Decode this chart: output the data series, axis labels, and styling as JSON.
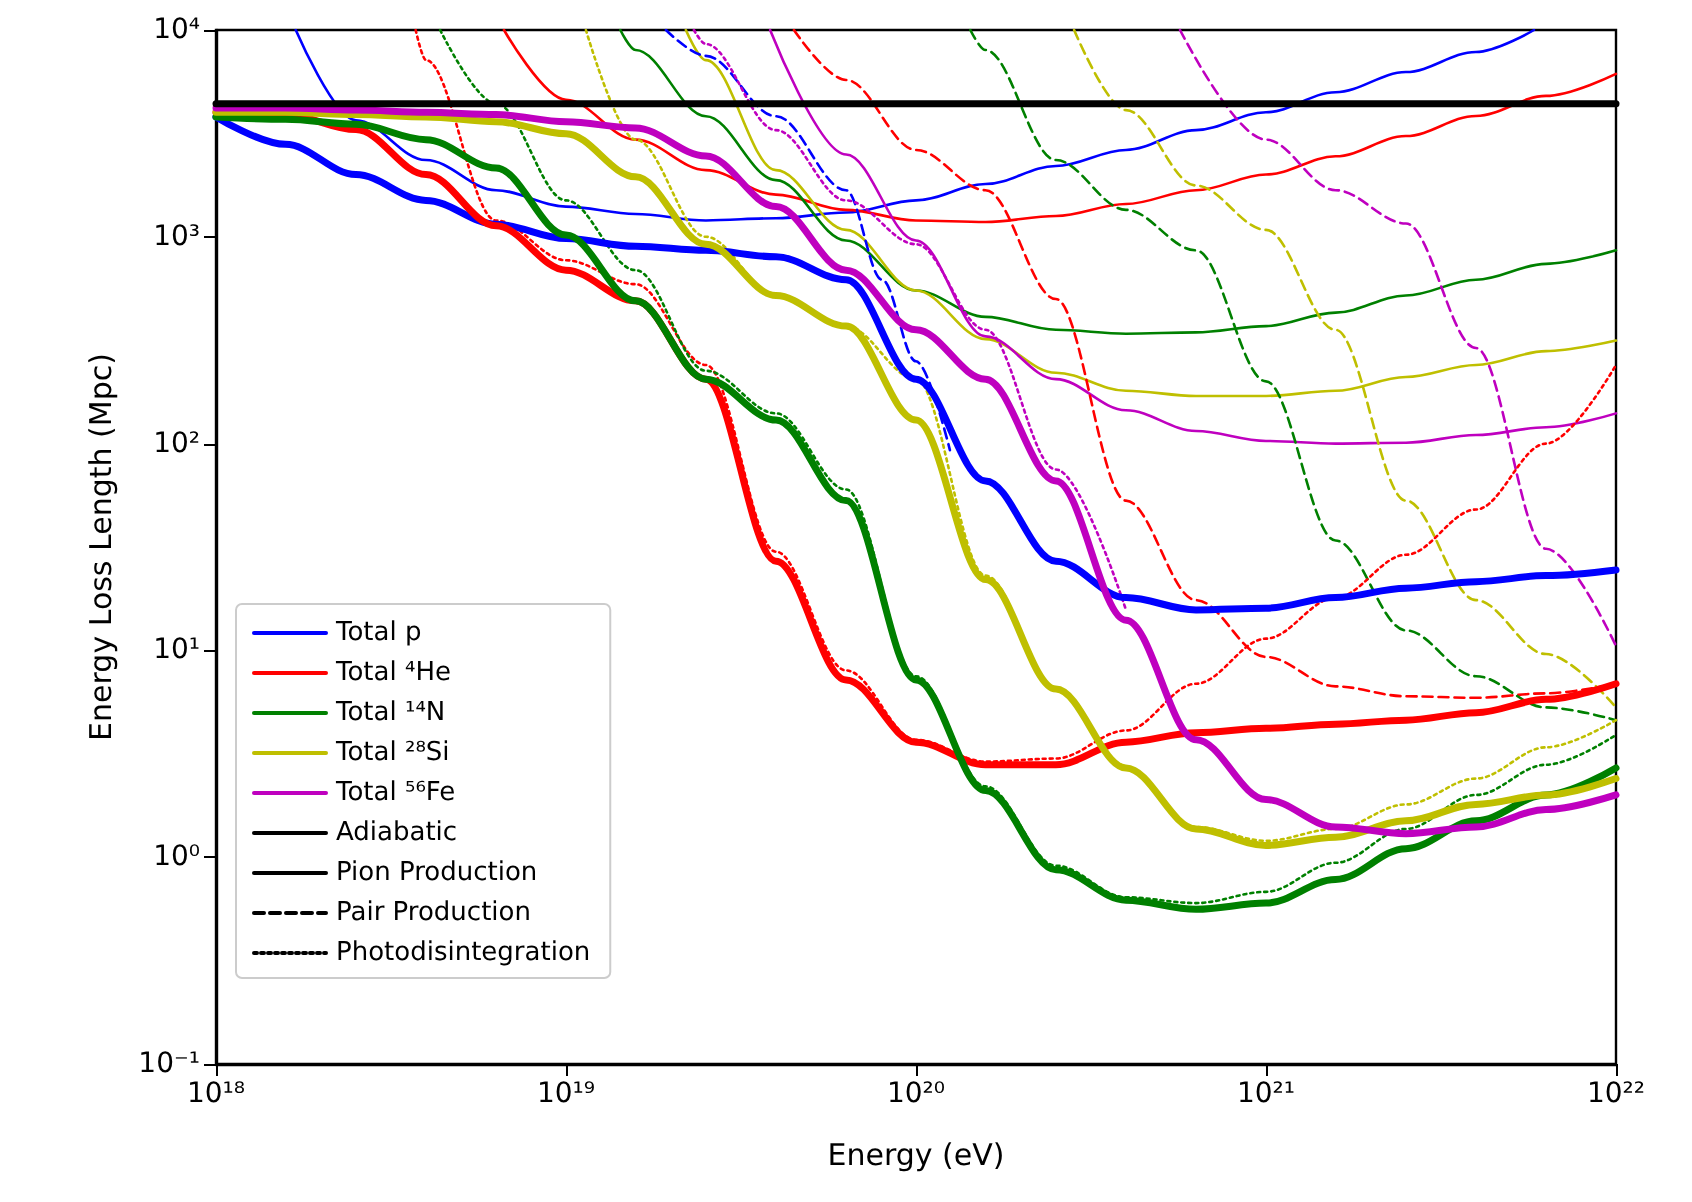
{
  "chart_data": {
    "type": "line",
    "xlabel": "Energy (eV)",
    "ylabel": "Energy Loss Length (Mpc)",
    "log": "xy",
    "grid": false,
    "legend": "bottom left",
    "marker": "none",
    "xlim": [
      1e+18,
      1e+22
    ],
    "xticks": [
      {
        "value": 1e+18,
        "label": "10¹⁸"
      },
      {
        "value": 1e+19,
        "label": "10¹⁹"
      },
      {
        "value": 1e+20,
        "label": "10²⁰"
      },
      {
        "value": 1e+21,
        "label": "10²¹"
      },
      {
        "value": 1e+22,
        "label": "10²²"
      }
    ],
    "ylim": [
      0.1,
      10000
    ],
    "yticks": [
      {
        "value": 0.1,
        "label": "10⁻¹"
      },
      {
        "value": 1,
        "label": "10⁰"
      },
      {
        "value": 10,
        "label": "10¹"
      },
      {
        "value": 100,
        "label": "10²"
      },
      {
        "value": 1000,
        "label": "10³"
      },
      {
        "value": 10000,
        "label": "10⁴"
      }
    ],
    "series": [
      {
        "name": "Total p",
        "color": "#0000ff",
        "line_style": "solid",
        "x": [
          1e+18,
          1.58e+18,
          2.51e+18,
          3.98e+18,
          6.31e+18,
          1e+19,
          1.58e+19,
          2.51e+19,
          3.98e+19,
          6.31e+19,
          1e+20,
          1.58e+20,
          2.51e+20,
          3.98e+20,
          6.31e+20,
          1e+21,
          1.58e+21,
          2.51e+21,
          3.98e+21,
          6.31e+21,
          1e+22
        ],
        "values": [
          3800,
          2800,
          2000,
          1500,
          1150,
          980,
          900,
          860,
          800,
          620,
          205,
          66,
          27,
          18,
          15.7,
          16,
          18,
          20,
          21.5,
          23,
          24.5
        ]
      },
      {
        "name": "Total ⁴He",
        "color": "#ff0000",
        "line_style": "solid",
        "x": [
          1e+18,
          1.58e+18,
          2.51e+18,
          3.98e+18,
          6.31e+18,
          1e+19,
          1.58e+19,
          2.51e+19,
          3.98e+19,
          6.31e+19,
          1e+20,
          1.58e+20,
          2.51e+20,
          3.98e+20,
          6.31e+20,
          1e+21,
          1.58e+21,
          2.51e+21,
          3.98e+21,
          6.31e+21,
          1e+22
        ],
        "values": [
          4000,
          3900,
          3300,
          2000,
          1130,
          690,
          490,
          205,
          27,
          7.2,
          3.6,
          2.8,
          2.8,
          3.6,
          4,
          4.2,
          4.4,
          4.6,
          5,
          5.8,
          6.9
        ]
      },
      {
        "name": "Total ¹⁴N",
        "color": "#008000",
        "line_style": "solid",
        "x": [
          1e+18,
          1.58e+18,
          2.51e+18,
          3.98e+18,
          6.31e+18,
          1e+19,
          1.58e+19,
          2.51e+19,
          3.98e+19,
          6.31e+19,
          1e+20,
          1.58e+20,
          2.51e+20,
          3.98e+20,
          6.31e+20,
          1e+21,
          1.58e+21,
          2.51e+21,
          3.98e+21,
          6.31e+21,
          1e+22
        ],
        "values": [
          3800,
          3700,
          3500,
          2950,
          2150,
          1020,
          490,
          205,
          130,
          53,
          7.2,
          2.1,
          0.87,
          0.62,
          0.56,
          0.6,
          0.78,
          1.1,
          1.5,
          2.0,
          2.7
        ]
      },
      {
        "name": "Total ²⁸Si",
        "color": "#bfbf00",
        "line_style": "solid",
        "x": [
          1e+18,
          1.58e+18,
          2.51e+18,
          3.98e+18,
          6.31e+18,
          1e+19,
          1.58e+19,
          2.51e+19,
          3.98e+19,
          6.31e+19,
          1e+20,
          1.58e+20,
          2.51e+20,
          3.98e+20,
          6.31e+20,
          1e+21,
          1.58e+21,
          2.51e+21,
          3.98e+21,
          6.31e+21,
          1e+22
        ],
        "values": [
          4000,
          4000,
          3900,
          3800,
          3600,
          3150,
          1950,
          920,
          520,
          370,
          130,
          22,
          6.5,
          2.7,
          1.37,
          1.14,
          1.25,
          1.5,
          1.8,
          2.0,
          2.4
        ]
      },
      {
        "name": "Total ⁵⁶Fe",
        "color": "#bf00bf",
        "line_style": "solid",
        "x": [
          1e+18,
          1.58e+18,
          2.51e+18,
          3.98e+18,
          6.31e+18,
          1e+19,
          1.58e+19,
          2.51e+19,
          3.98e+19,
          6.31e+19,
          1e+20,
          1.58e+20,
          2.51e+20,
          3.98e+20,
          6.31e+20,
          1e+21,
          1.58e+21,
          2.51e+21,
          3.98e+21,
          6.31e+21,
          1e+22
        ],
        "values": [
          4200,
          4200,
          4100,
          4000,
          3900,
          3600,
          3360,
          2460,
          1400,
          690,
          355,
          205,
          66,
          14,
          3.7,
          1.9,
          1.4,
          1.3,
          1.4,
          1.7,
          2.0
        ]
      },
      {
        "name": "Adiabatic",
        "color": "#000000",
        "line_style": "solid",
        "x": [
          1e+18,
          1e+22
        ],
        "values": [
          4400,
          4400
        ]
      },
      {
        "name": "Pion Production",
        "color": "#000000",
        "line_style": "solid"
      },
      {
        "name": "Pair Production",
        "color": "#000000",
        "line_style": "dashed"
      },
      {
        "name": "Photodisintegration",
        "color": "#000000",
        "line_style": "dotted"
      },
      {
        "color": "#0000ff",
        "line_style": "solid",
        "x": [
          1.69e+18,
          2.51e+18,
          3.98e+18,
          6.31e+18,
          1e+19,
          1.58e+19,
          2.51e+19,
          3.98e+19,
          6.31e+19,
          1e+20,
          1.58e+20,
          2.51e+20,
          3.98e+20,
          6.31e+20,
          1e+21,
          1.58e+21,
          2.51e+21,
          3.98e+21,
          5.83e+21
        ],
        "values": [
          10000,
          3660,
          2350,
          1680,
          1400,
          1290,
          1200,
          1230,
          1310,
          1500,
          1800,
          2200,
          2630,
          3280,
          4000,
          5000,
          6260,
          7830,
          10000
        ]
      },
      {
        "color": "#ff0000",
        "line_style": "solid",
        "x": [
          6.65e+18,
          1e+19,
          1.58e+19,
          2.51e+19,
          3.98e+19,
          6.31e+19,
          1e+20,
          1.58e+20,
          2.51e+20,
          3.98e+20,
          6.31e+20,
          1e+21,
          1.58e+21,
          2.51e+21,
          3.98e+21,
          6.31e+21,
          1e+22
        ],
        "values": [
          10000,
          4600,
          2950,
          2100,
          1600,
          1350,
          1200,
          1180,
          1260,
          1440,
          1680,
          2000,
          2450,
          3070,
          3840,
          4800,
          6130
        ]
      },
      {
        "color": "#008000",
        "line_style": "solid",
        "x": [
          1.43e+19,
          1.58e+19,
          2.51e+19,
          3.98e+19,
          6.31e+19,
          1e+20,
          1.58e+20,
          2.51e+20,
          3.98e+20,
          6.31e+20,
          1e+21,
          1.58e+21,
          2.51e+21,
          3.98e+21,
          6.31e+21,
          1e+22
        ],
        "values": [
          10000,
          8000,
          3830,
          1880,
          960,
          550,
          410,
          355,
          340,
          345,
          370,
          430,
          520,
          620,
          740,
          860
        ]
      },
      {
        "color": "#bfbf00",
        "line_style": "solid",
        "x": [
          2.2e+19,
          2.51e+19,
          3.98e+19,
          6.31e+19,
          1e+20,
          1.58e+20,
          2.51e+20,
          3.98e+20,
          6.31e+20,
          1e+21,
          1.58e+21,
          2.51e+21,
          3.98e+21,
          6.31e+21,
          1e+22
        ],
        "values": [
          10000,
          7150,
          2100,
          1080,
          550,
          320,
          220,
          180,
          170,
          170,
          180,
          210,
          240,
          280,
          315
        ]
      },
      {
        "color": "#bf00bf",
        "line_style": "solid",
        "x": [
          3.83e+19,
          6.31e+19,
          1e+20,
          1.58e+20,
          2.51e+20,
          3.98e+20,
          6.31e+20,
          1e+21,
          1.58e+21,
          2.51e+21,
          3.98e+21,
          6.31e+21,
          1e+22
        ],
        "values": [
          10000,
          2500,
          960,
          330,
          205,
          145,
          115,
          103,
          100,
          101,
          110,
          120,
          140
        ]
      },
      {
        "color": "#0000ff",
        "line_style": "dashed",
        "x": [
          1.93e+19,
          2.51e+19,
          3.98e+19,
          6.31e+19,
          8e+19,
          1e+20,
          1.25e+20
        ],
        "values": [
          10000,
          7500,
          3830,
          1680,
          620,
          250,
          93
        ]
      },
      {
        "color": "#ff0000",
        "line_style": "dashed",
        "x": [
          4.48e+19,
          6.31e+19,
          1e+20,
          1.58e+20,
          2.51e+20,
          3.98e+20,
          6.31e+20,
          1e+21,
          1.58e+21,
          2.51e+21,
          3.98e+21,
          6.31e+21,
          1e+22
        ],
        "values": [
          10000,
          5730,
          2630,
          1680,
          500,
          53,
          17.5,
          9.3,
          6.7,
          6.0,
          5.9,
          6.2,
          6.9
        ]
      },
      {
        "color": "#008000",
        "line_style": "dashed",
        "x": [
          1.43e+20,
          1.58e+20,
          2.51e+20,
          3.98e+20,
          6.31e+20,
          1e+21,
          1.58e+21,
          2.51e+21,
          3.98e+21,
          6.31e+21,
          1e+22
        ],
        "values": [
          10000,
          8000,
          2350,
          1350,
          860,
          200,
          34,
          12.5,
          7.5,
          5.3,
          4.6
        ]
      },
      {
        "color": "#bfbf00",
        "line_style": "dashed",
        "x": [
          2.83e+20,
          3.98e+20,
          6.31e+20,
          1e+21,
          1.58e+21,
          2.51e+21,
          3.98e+21,
          6.31e+21,
          1e+22
        ],
        "values": [
          10000,
          4100,
          1770,
          1080,
          355,
          53,
          17.5,
          9.6,
          5.3
        ]
      },
      {
        "color": "#bf00bf",
        "line_style": "dashed",
        "x": [
          5.68e+20,
          1e+21,
          1.58e+21,
          2.51e+21,
          3.98e+21,
          6.31e+21,
          1e+22
        ],
        "values": [
          10000,
          2950,
          1680,
          1160,
          290,
          31,
          10.5
        ]
      },
      {
        "color": "#ff0000",
        "line_style": "dotted",
        "x": [
          3.72e+18,
          3.98e+18,
          6.31e+18,
          1e+19,
          1.58e+19,
          2.51e+19,
          3.98e+19,
          6.31e+19,
          1e+20,
          1.58e+20,
          2.51e+20,
          3.98e+20,
          6.31e+20,
          1e+21,
          1.58e+21,
          2.51e+21,
          3.98e+21,
          6.31e+21,
          1e+22
        ],
        "values": [
          10000,
          7150,
          1200,
          770,
          590,
          240,
          30,
          8.0,
          3.7,
          2.9,
          3.0,
          4.1,
          6.9,
          11.4,
          18,
          29,
          48,
          100,
          240
        ]
      },
      {
        "color": "#008000",
        "line_style": "dotted",
        "x": [
          4.37e+18,
          6.31e+18,
          1e+19,
          1.58e+19,
          2.51e+19,
          3.98e+19,
          6.31e+19,
          1e+20,
          1.58e+20,
          2.51e+20,
          3.98e+20,
          6.31e+20,
          1e+21,
          1.58e+21,
          2.51e+21,
          3.98e+21,
          6.31e+21,
          1e+22
        ],
        "values": [
          10000,
          4400,
          1500,
          690,
          225,
          140,
          60,
          7.5,
          2.2,
          0.91,
          0.64,
          0.6,
          0.68,
          0.94,
          1.37,
          2.0,
          2.8,
          3.9
        ]
      },
      {
        "color": "#bfbf00",
        "line_style": "dotted",
        "x": [
          1.14e+19,
          1.58e+19,
          2.51e+19,
          3.98e+19,
          6.31e+19,
          1e+20,
          1.58e+20,
          2.51e+20,
          3.98e+20,
          6.31e+20,
          1e+21,
          1.58e+21,
          2.51e+21,
          3.98e+21,
          6.31e+21,
          1e+22
        ],
        "values": [
          10000,
          2950,
          1000,
          520,
          370,
          205,
          23,
          6.6,
          2.7,
          1.4,
          1.2,
          1.37,
          1.8,
          2.4,
          3.4,
          4.6
        ]
      },
      {
        "color": "#bf00bf",
        "line_style": "dotted",
        "x": [
          2.32e+19,
          2.51e+19,
          3.98e+19,
          6.31e+19,
          1e+20,
          1.58e+20,
          2.51e+20,
          3.98e+20
        ],
        "values": [
          10000,
          8550,
          3280,
          1500,
          920,
          355,
          75,
          15.7
        ]
      }
    ]
  }
}
